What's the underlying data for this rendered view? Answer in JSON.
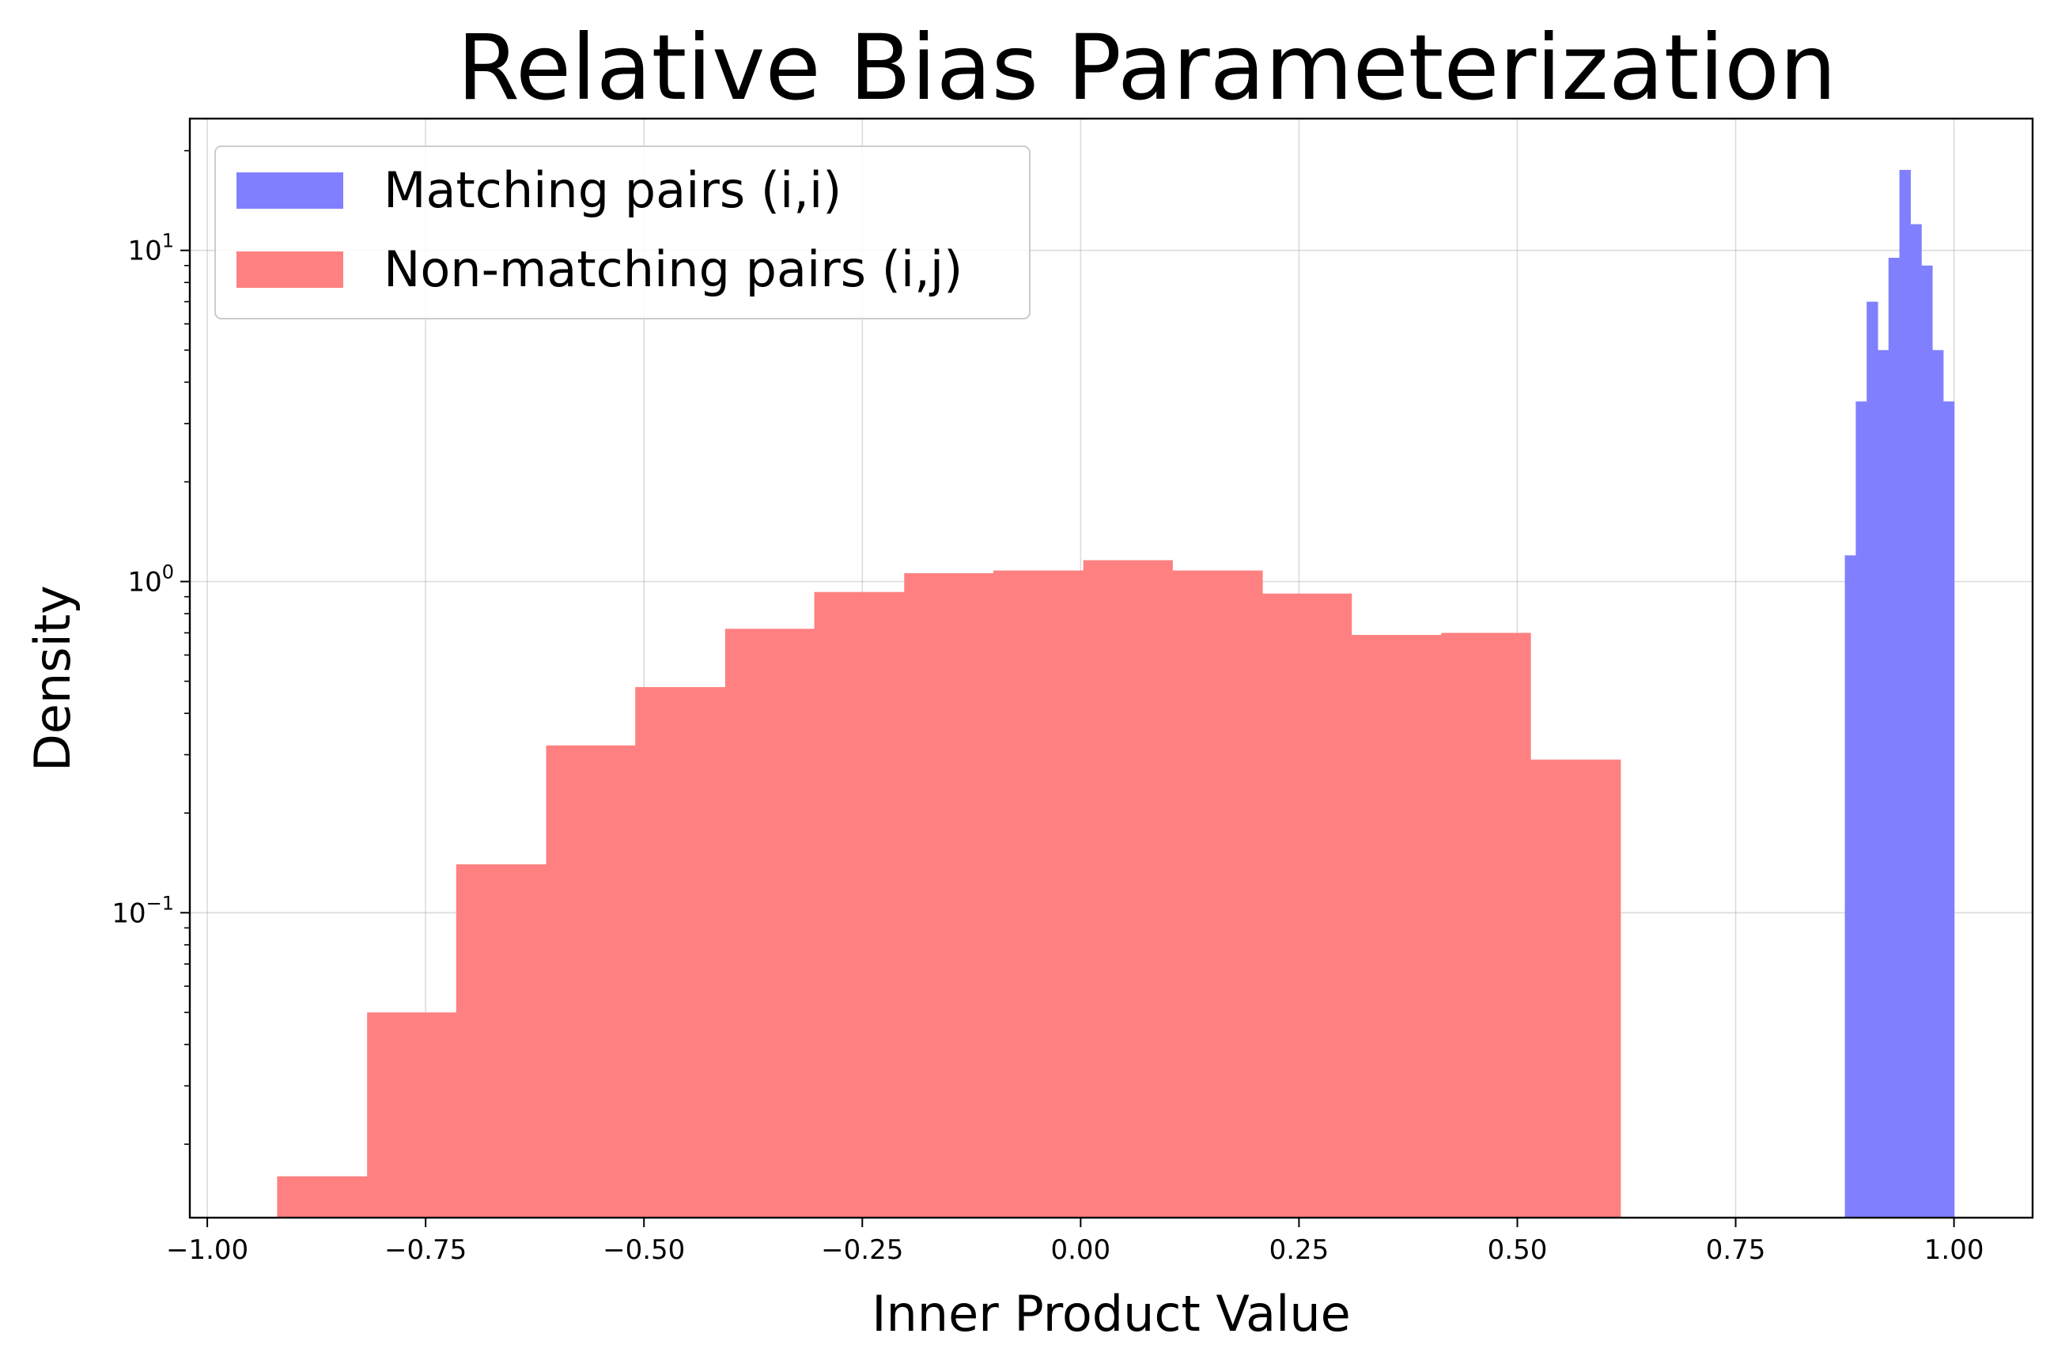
{
  "chart_data": {
    "type": "bar",
    "title": "Relative Bias Parameterization",
    "xlabel": "Inner Product Value",
    "ylabel": "Density",
    "yscale": "log",
    "xlim": [
      -1.02,
      1.09
    ],
    "ylim": [
      0.012,
      25
    ],
    "grid": true,
    "legend_position": "top-left",
    "x_ticks": [
      "−1.00",
      "−0.75",
      "−0.50",
      "−0.25",
      "0.00",
      "0.25",
      "0.50",
      "0.75",
      "1.00"
    ],
    "x_tick_values": [
      -1.0,
      -0.75,
      -0.5,
      -0.25,
      0.0,
      0.25,
      0.5,
      0.75,
      1.0
    ],
    "y_ticks": [
      {
        "value": 0.1,
        "base": "10",
        "exp": "−1"
      },
      {
        "value": 1,
        "base": "10",
        "exp": "0"
      },
      {
        "value": 10,
        "base": "10",
        "exp": "1"
      }
    ],
    "series": [
      {
        "name": "Matching pairs (i,i)",
        "color": "#8080ff",
        "bin_edges": [
          0.875,
          0.8875,
          0.9,
          0.9125,
          0.925,
          0.9375,
          0.95,
          0.9625,
          0.975,
          0.9875,
          1.0
        ],
        "values": [
          1.2,
          3.5,
          7.0,
          5.0,
          9.5,
          17.5,
          12.0,
          9.0,
          5.0,
          3.5
        ]
      },
      {
        "name": "Non-matching pairs (i,j)",
        "color": "#ff8080",
        "bin_edges": [
          -0.92,
          -0.817,
          -0.715,
          -0.612,
          -0.51,
          -0.407,
          -0.305,
          -0.202,
          -0.1,
          0.003,
          0.105,
          0.208,
          0.31,
          0.413,
          0.515,
          0.618
        ],
        "values": [
          0.016,
          0.05,
          0.14,
          0.32,
          0.48,
          0.72,
          0.93,
          1.06,
          1.08,
          1.16,
          1.08,
          0.92,
          0.69,
          0.7,
          0.29
        ]
      }
    ]
  }
}
